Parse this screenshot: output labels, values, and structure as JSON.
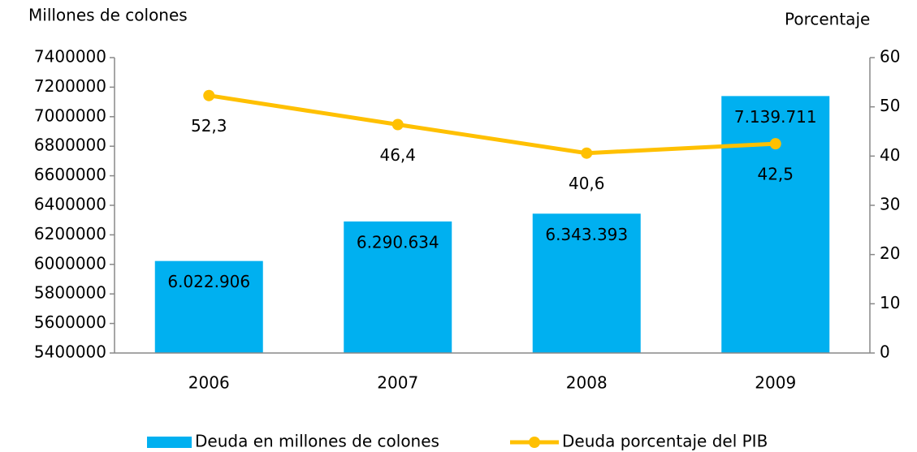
{
  "chart_data": {
    "type": "bar",
    "y_label": "Millones de colones",
    "y2_label": "Porcentaje",
    "categories": [
      "2006",
      "2007",
      "2008",
      "2009"
    ],
    "series": [
      {
        "name": "Deuda en millones de colones",
        "type": "bar",
        "color": "#00b0f0",
        "values": [
          6022906,
          6290634,
          6343393,
          7139711
        ],
        "value_labels": [
          "6.022.906",
          "6.290.634",
          "6.343.393",
          "7.139.711"
        ]
      },
      {
        "name": "Deuda porcentaje del PIB",
        "type": "line",
        "axis": "y2",
        "color": "#ffc000",
        "values": [
          52.3,
          46.4,
          40.6,
          42.5
        ],
        "value_labels": [
          "52,3",
          "46,4",
          "40,6",
          "42,5"
        ]
      }
    ],
    "ylim": [
      5400000,
      7400000
    ],
    "yticks": [
      5400000,
      5600000,
      5800000,
      6000000,
      6200000,
      6400000,
      6600000,
      6800000,
      7000000,
      7200000,
      7400000
    ],
    "y2lim": [
      0,
      60
    ],
    "y2ticks": [
      0,
      10,
      20,
      30,
      40,
      50,
      60
    ],
    "grid": false,
    "legend": "bottom"
  }
}
